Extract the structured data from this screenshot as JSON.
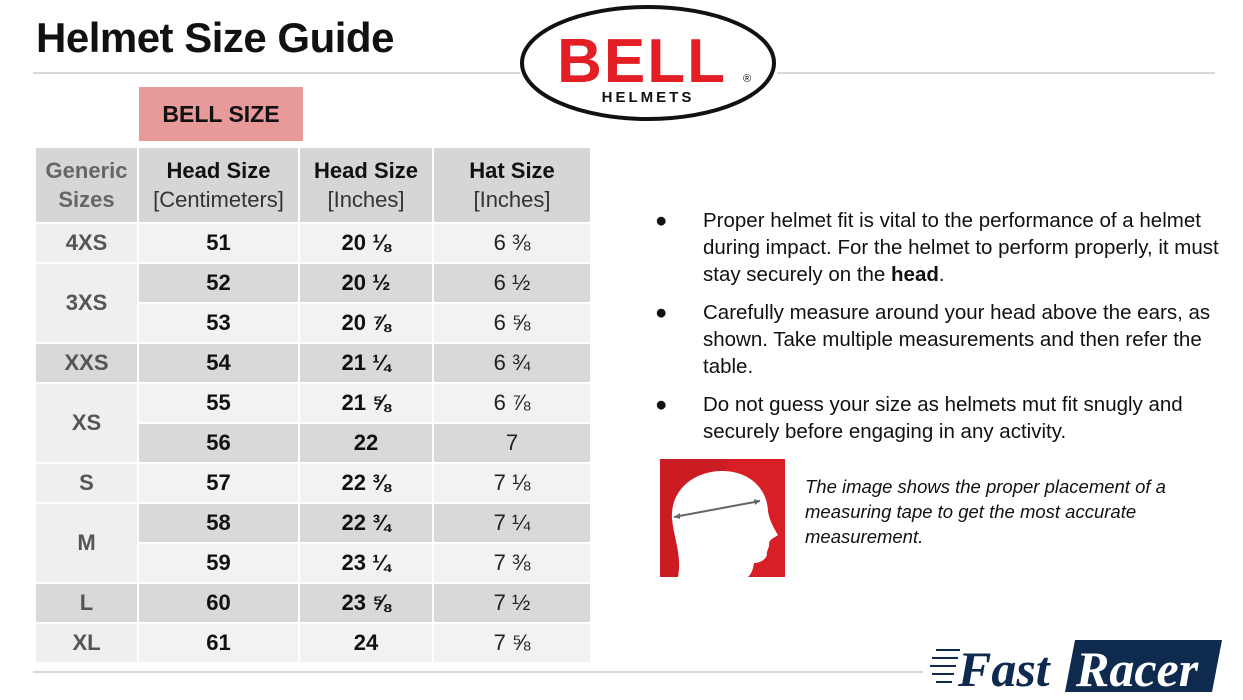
{
  "title": "Helmet Size Guide",
  "logo": {
    "brand": "BELL",
    "sub": "HELMETS",
    "mark": "®"
  },
  "bell_size_label": "BELL SIZE",
  "table": {
    "headers": [
      {
        "main": "Generic",
        "sub": "Sizes"
      },
      {
        "main": "Head Size",
        "sub": "[Centimeters]"
      },
      {
        "main": "Head Size",
        "sub": "[Inches]"
      },
      {
        "main": "Hat Size",
        "sub": "[Inches]"
      }
    ],
    "groups": [
      {
        "generic": "4XS",
        "rows": [
          [
            "51",
            "20 ⅛",
            "6 ⅜"
          ]
        ]
      },
      {
        "generic": "3XS",
        "rows": [
          [
            "52",
            "20 ½",
            "6 ½"
          ],
          [
            "53",
            "20 ⅞",
            "6 ⅝"
          ]
        ]
      },
      {
        "generic": "XXS",
        "rows": [
          [
            "54",
            "21 ¼",
            "6 ¾"
          ]
        ]
      },
      {
        "generic": "XS",
        "rows": [
          [
            "55",
            "21 ⅝",
            "6 ⅞"
          ],
          [
            "56",
            "22",
            "7"
          ]
        ]
      },
      {
        "generic": "S",
        "rows": [
          [
            "57",
            "22 ⅜",
            "7 ⅛"
          ]
        ]
      },
      {
        "generic": "M",
        "rows": [
          [
            "58",
            "22 ¾",
            "7 ¼"
          ],
          [
            "59",
            "23 ¼",
            "7 ⅜"
          ]
        ]
      },
      {
        "generic": "L",
        "rows": [
          [
            "60",
            "23 ⅝",
            "7 ½"
          ]
        ]
      },
      {
        "generic": "XL",
        "rows": [
          [
            "61",
            "24",
            "7 ⅝"
          ]
        ]
      }
    ]
  },
  "bullets": [
    {
      "text": "Proper helmet fit is vital to the performance of a helmet during impact. For the helmet to perform properly, it must stay securely on the ",
      "bold": "head",
      "end": "."
    },
    {
      "text": "Carefully measure around your head above the ears, as shown. Take multiple measurements and then refer the table.",
      "bold": "",
      "end": ""
    },
    {
      "text": "Do not guess your size as helmets mut fit snugly and securely before engaging in any activity.",
      "bold": "",
      "end": ""
    }
  ],
  "bullet_symbol": "●",
  "caption": "The image shows the proper placement of a measuring tape to get the most accurate measurement.",
  "footer_logo": {
    "part1": "Fast",
    "part2": "Racer"
  },
  "colors": {
    "bell_red": "#e31e24",
    "bell_size_bg": "#e89a9a",
    "fastracer_navy": "#0f2a4f"
  }
}
